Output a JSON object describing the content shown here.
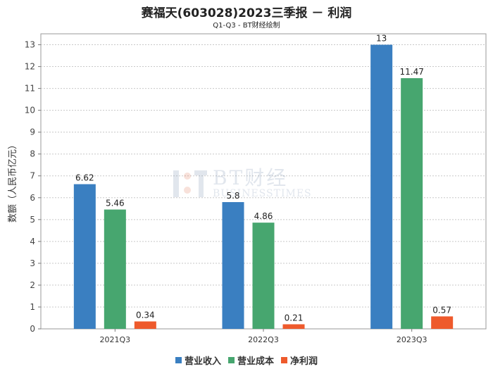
{
  "title": "赛福天(603028)2023三季报 － 利润",
  "subtitle": "Q1-Q3 - BT财经绘制",
  "watermark": {
    "line1": "BT财经",
    "line2": "BUSINESSTIMES"
  },
  "colors": {
    "revenue": "#3a7fc1",
    "cost": "#47a66f",
    "profit": "#ee5a2c"
  },
  "chart_data": {
    "type": "bar",
    "title": "赛福天(603028)2023三季报 － 利润",
    "subtitle": "Q1-Q3 - BT财经绘制",
    "xlabel": "",
    "ylabel": "数额（人民币亿元）",
    "ylim": [
      0,
      13.5
    ],
    "yticks": [
      0,
      1,
      2,
      3,
      4,
      5,
      6,
      7,
      8,
      9,
      10,
      11,
      12,
      13
    ],
    "grid": true,
    "legend": "bottom",
    "categories": [
      "2021Q3",
      "2022Q3",
      "2023Q3"
    ],
    "series": [
      {
        "name": "营业收入",
        "values": [
          6.62,
          5.8,
          13
        ],
        "labels": [
          "6.62",
          "5.8",
          "13"
        ]
      },
      {
        "name": "营业成本",
        "values": [
          5.46,
          4.86,
          11.47
        ],
        "labels": [
          "5.46",
          "4.86",
          "11.47"
        ]
      },
      {
        "name": "净利润",
        "values": [
          0.34,
          0.21,
          0.57
        ],
        "labels": [
          "0.34",
          "0.21",
          "0.57"
        ]
      }
    ]
  }
}
